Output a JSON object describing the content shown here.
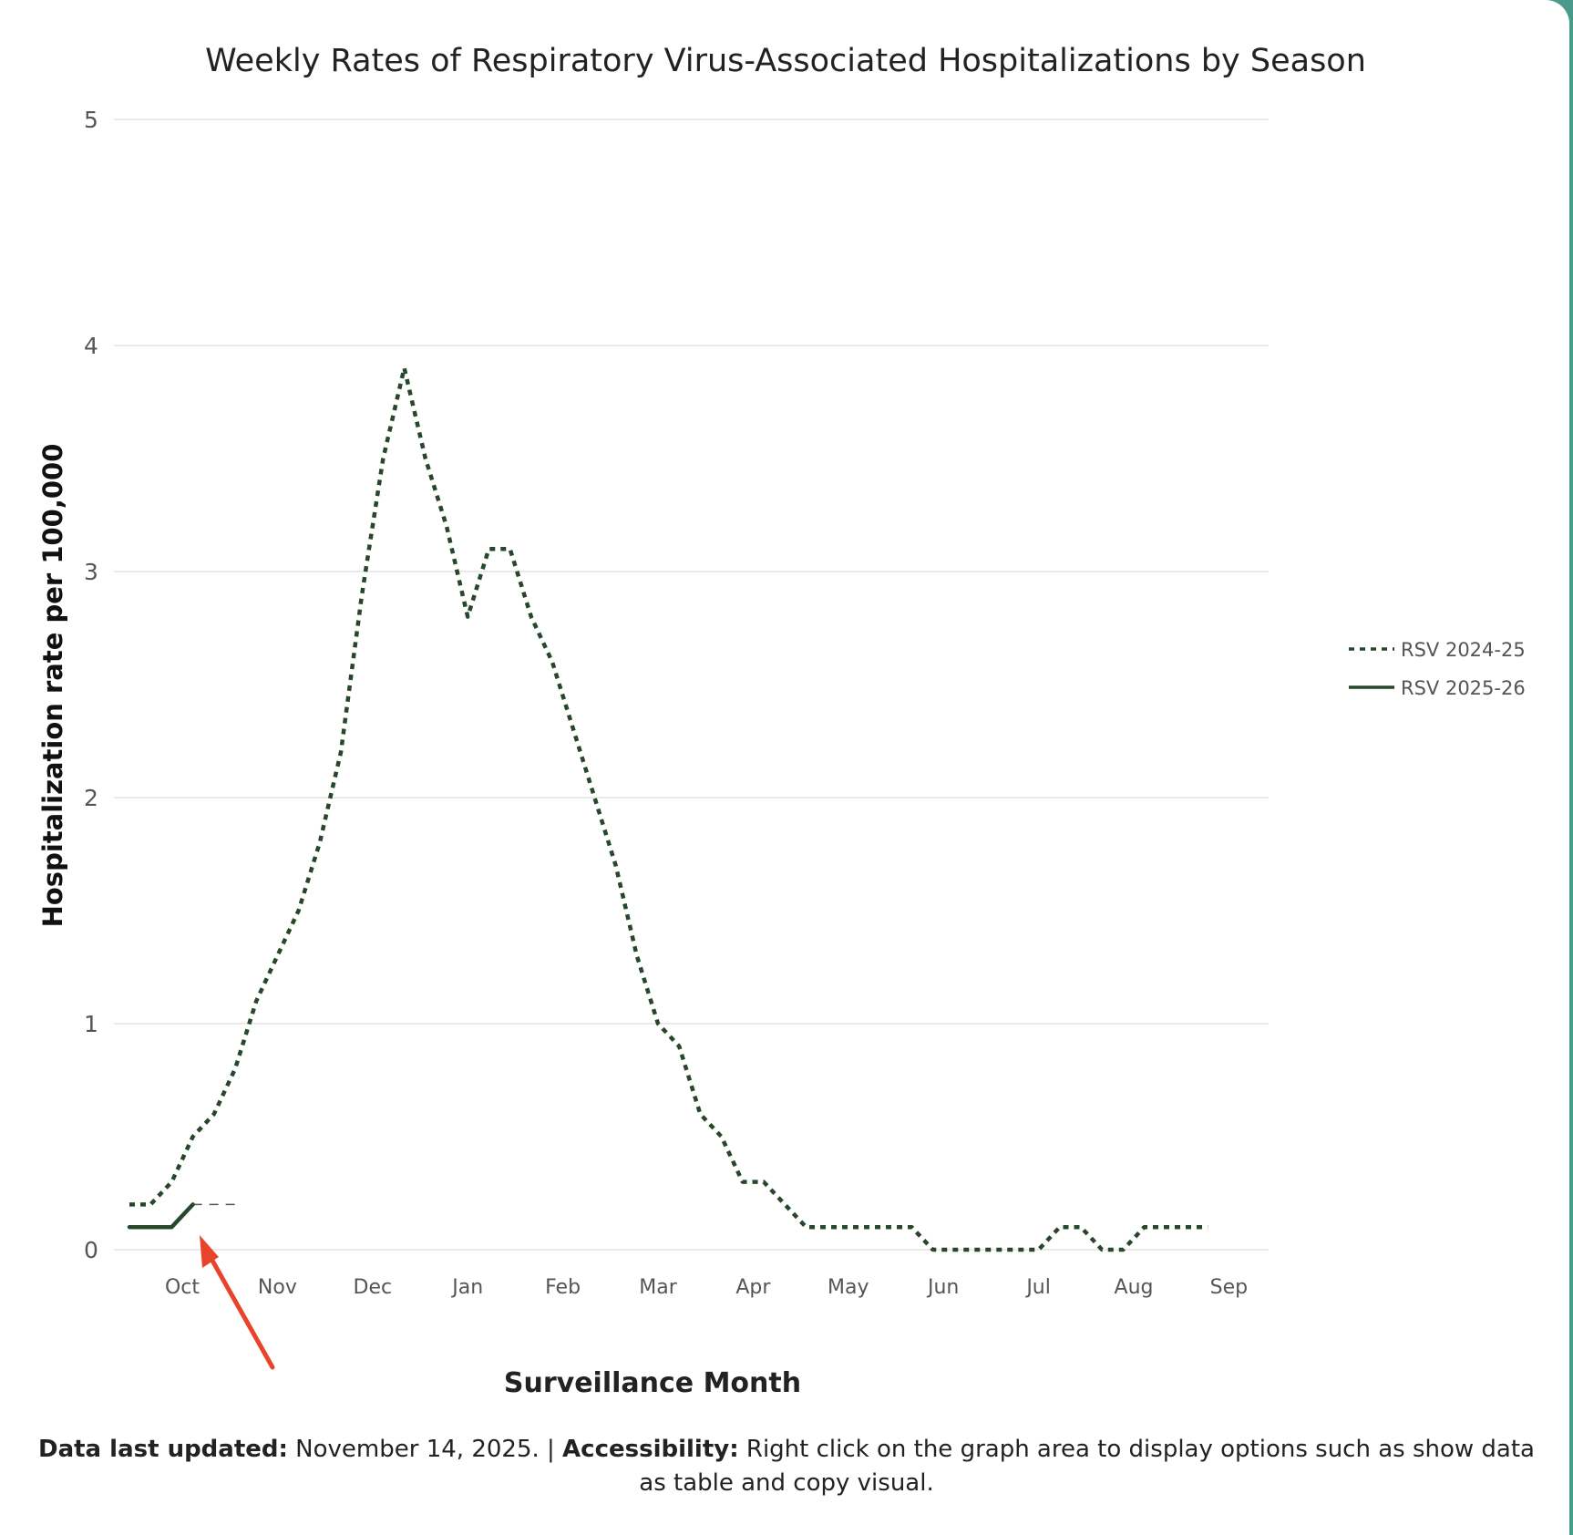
{
  "chart_data": {
    "type": "line",
    "title": "Weekly Rates of Respiratory Virus-Associated Hospitalizations by Season",
    "xlabel": "Surveillance Month",
    "ylabel": "Hospitalization rate per 100,000",
    "ylim": [
      0,
      5
    ],
    "y_ticks": [
      0,
      1,
      2,
      3,
      4,
      5
    ],
    "x_ticks": [
      "Oct",
      "Nov",
      "Dec",
      "Jan",
      "Feb",
      "Mar",
      "Apr",
      "May",
      "Jun",
      "Jul",
      "Aug",
      "Sep"
    ],
    "grid": true,
    "legend_position": "right",
    "series": [
      {
        "name": "RSV 2024-25",
        "style": "dotted",
        "color": "#27472a",
        "values": [
          0.2,
          0.2,
          0.3,
          0.5,
          0.6,
          0.8,
          1.1,
          1.3,
          1.5,
          1.8,
          2.2,
          2.9,
          3.5,
          3.9,
          3.5,
          3.2,
          2.8,
          3.1,
          3.1,
          2.8,
          2.6,
          2.3,
          2.0,
          1.7,
          1.3,
          1.0,
          0.9,
          0.6,
          0.5,
          0.3,
          0.3,
          0.2,
          0.1,
          0.1,
          0.1,
          0.1,
          0.1,
          0.1,
          0.0,
          0.0,
          0.0,
          0.0,
          0.0,
          0.0,
          0.1,
          0.1,
          0.0,
          0.0,
          0.1,
          0.1,
          0.1,
          0.1
        ]
      },
      {
        "name": "RSV 2025-26",
        "style": "solid",
        "color": "#27472a",
        "values": [
          0.1,
          0.1,
          0.1,
          0.2
        ]
      }
    ],
    "forecast_dash": {
      "color": "#555555",
      "values": [
        0.2,
        0.2,
        0.2
      ]
    }
  },
  "annotation": {
    "arrow_color": "#e8442c"
  },
  "footer": {
    "updated_label": "Data last updated:",
    "updated_value": " November 14, 2025. | ",
    "accessibility_label": "Accessibility:",
    "accessibility_text": " Right click on the graph area to display options such as show data as table and copy visual."
  }
}
